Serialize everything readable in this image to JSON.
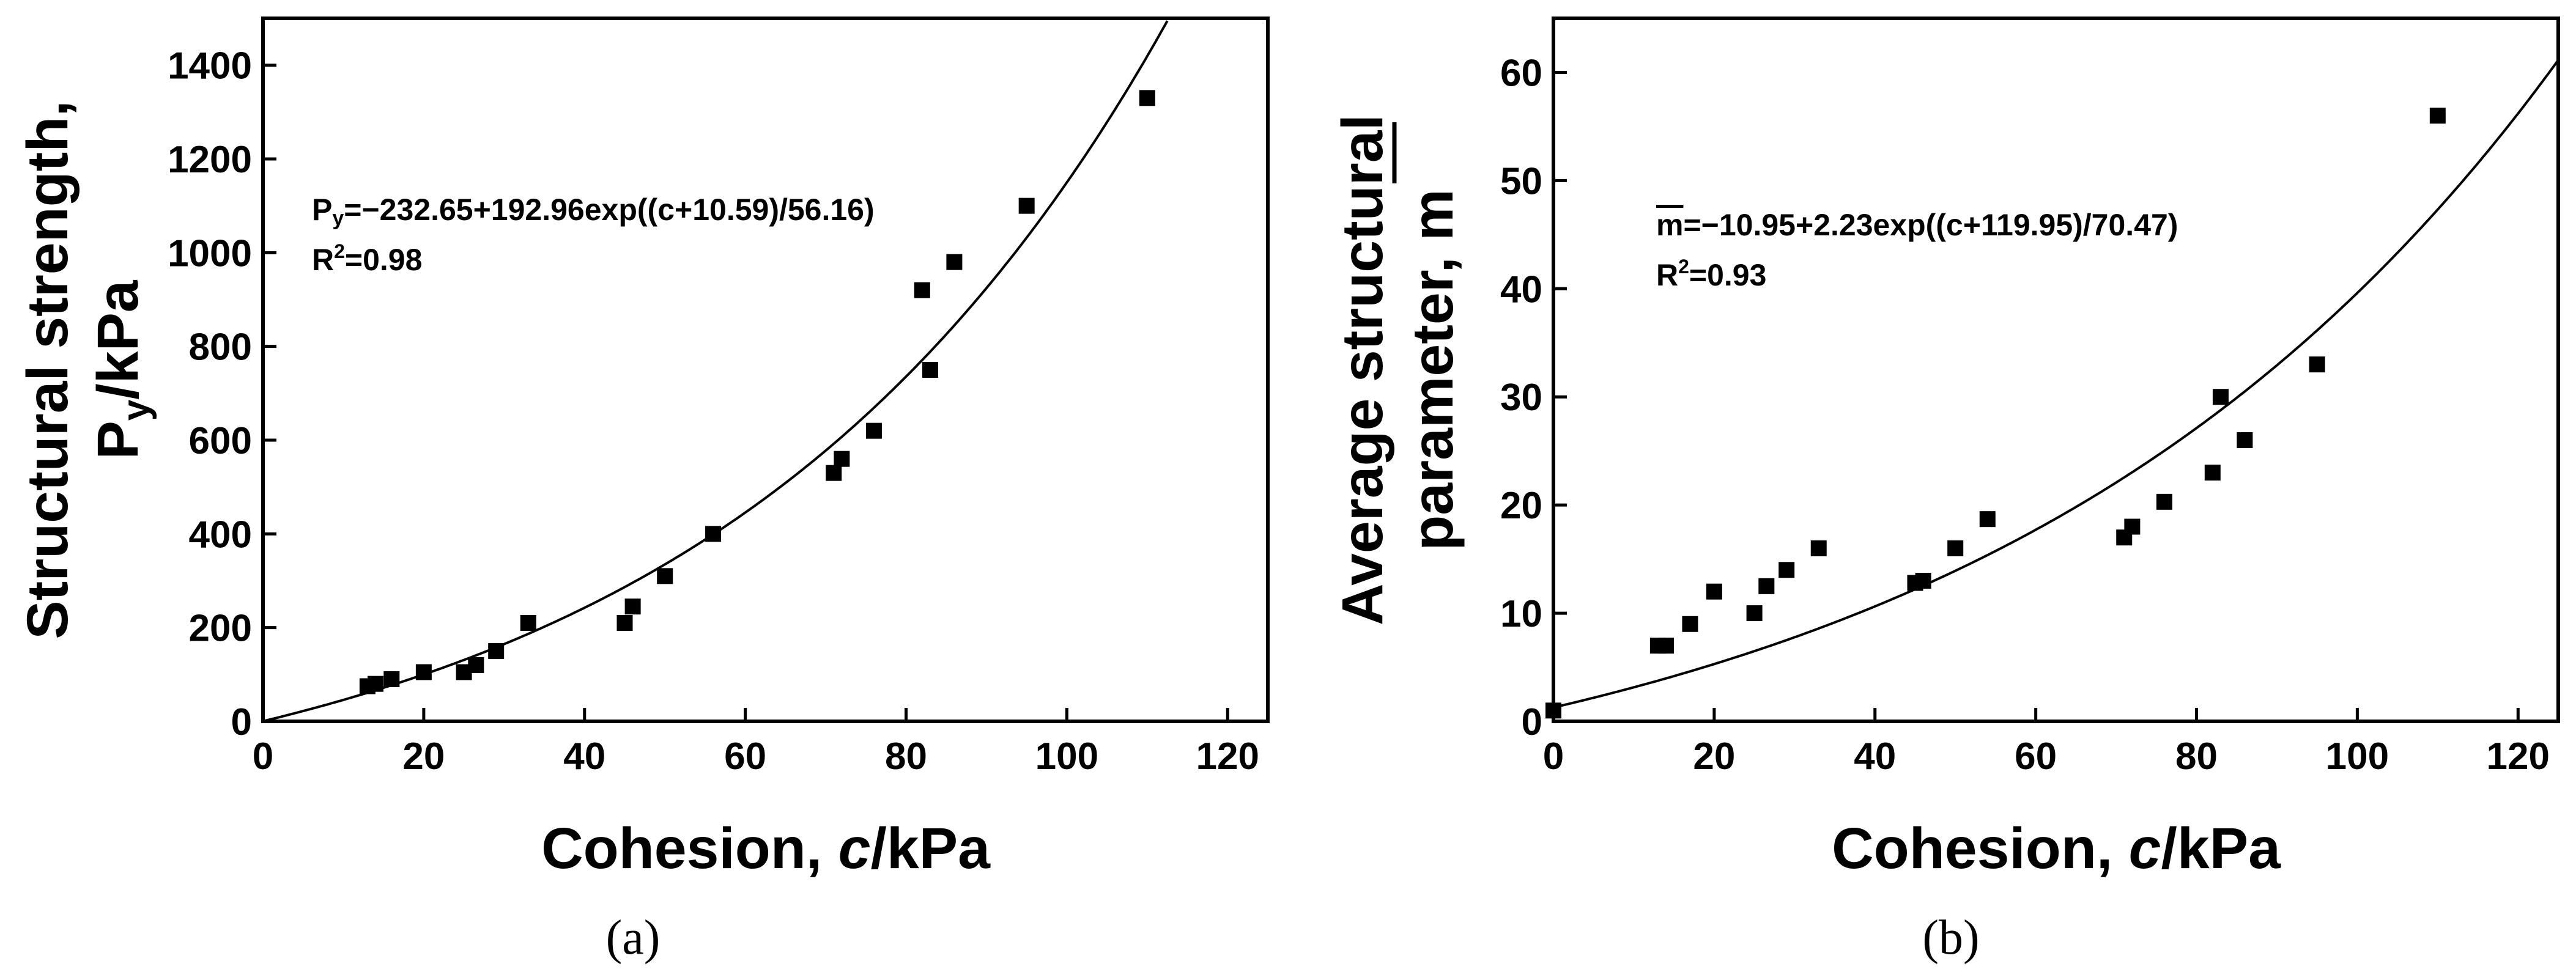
{
  "chart_data": [
    {
      "type": "scatter",
      "panel_label": "(a)",
      "xlabel_prefix": "Cohesion, ",
      "xlabel_var": "c",
      "xlabel_suffix": "/kPa",
      "ylabel_line1": "Structural strength,",
      "ylabel_line2_main": "P",
      "ylabel_line2_sub": "y",
      "ylabel_line2_rest": "/kPa",
      "xlim": [
        0,
        125
      ],
      "ylim": [
        0,
        1500
      ],
      "xticks": [
        0,
        20,
        40,
        60,
        80,
        100,
        120
      ],
      "yticks": [
        0,
        200,
        400,
        600,
        800,
        1000,
        1200,
        1400
      ],
      "x": [
        13,
        14,
        16,
        20,
        25,
        26.5,
        29,
        33,
        45,
        46,
        50,
        56,
        71,
        72,
        76,
        82,
        83,
        86,
        95,
        110
      ],
      "y": [
        75,
        80,
        90,
        105,
        105,
        120,
        150,
        210,
        210,
        245,
        310,
        400,
        530,
        560,
        620,
        920,
        750,
        980,
        1100,
        1330
      ],
      "fit": {
        "a": -232.65,
        "b": 192.96,
        "c0": 10.59,
        "d": 56.16
      },
      "equation_main": "P",
      "equation_sub": "y",
      "equation_rest": "=−232.65+192.96exp((c+10.59)/56.16)",
      "r2_main": "R",
      "r2_sup": "2",
      "r2_rest": "=0.98"
    },
    {
      "type": "scatter",
      "panel_label": "(b)",
      "xlabel_prefix": "Cohesion, ",
      "xlabel_var": "c",
      "xlabel_suffix": "/kPa",
      "ylabel_line1": "Average structural",
      "ylabel_line2_main": "parameter, m",
      "xlim": [
        0,
        125
      ],
      "ylim": [
        0,
        65
      ],
      "xticks": [
        0,
        20,
        40,
        60,
        80,
        100,
        120
      ],
      "yticks": [
        0,
        10,
        20,
        30,
        40,
        50,
        60
      ],
      "x": [
        0,
        13,
        14,
        17,
        20,
        25,
        26.5,
        29,
        33,
        45,
        46,
        50,
        54,
        71,
        72,
        76,
        82,
        83,
        86,
        95,
        110
      ],
      "y": [
        1,
        7,
        7,
        9,
        12,
        10,
        12.5,
        14,
        16,
        12.8,
        13,
        16,
        18.7,
        17,
        18,
        20.3,
        23,
        30,
        26,
        33,
        56
      ],
      "fit": {
        "a": -10.95,
        "b": 2.23,
        "c0": 119.95,
        "d": 70.47
      },
      "equation_main": "m",
      "equation_rest": "=−10.95+2.23exp((c+119.95)/70.47)",
      "r2_main": "R",
      "r2_sup": "2",
      "r2_rest": "=0.93"
    }
  ]
}
